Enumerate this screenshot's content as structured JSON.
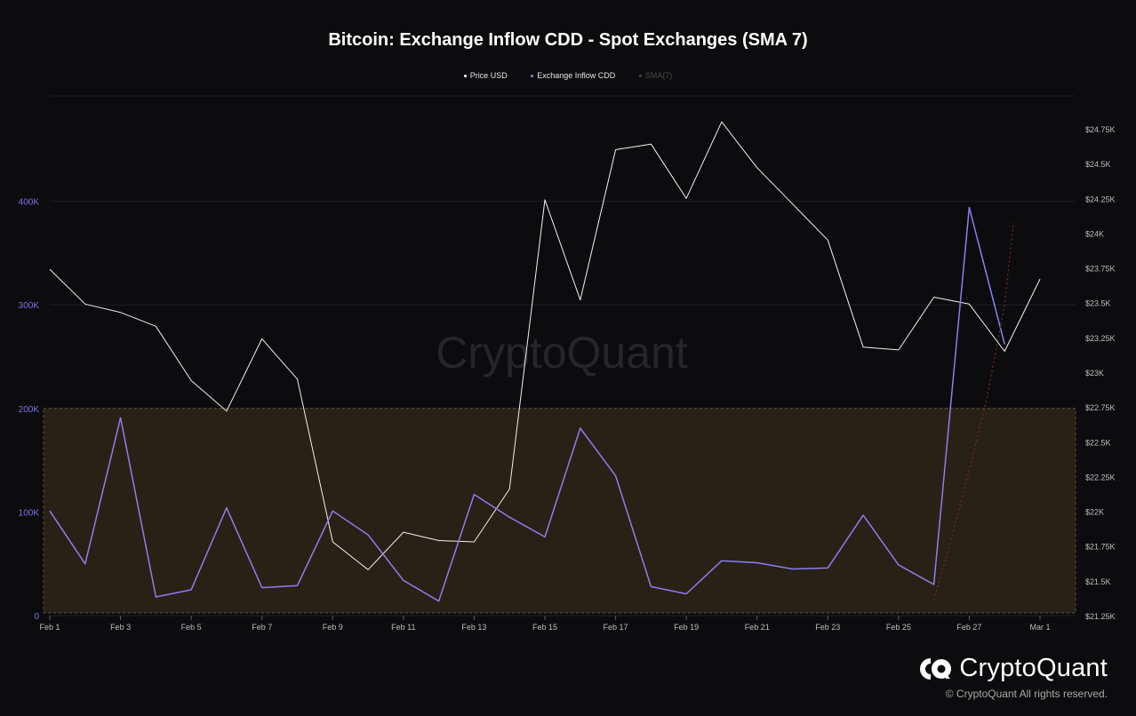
{
  "chart_data": {
    "type": "line",
    "title": "Bitcoin: Exchange Inflow CDD - Spot Exchanges (SMA 7)",
    "legend": [
      {
        "label": "Price USD",
        "color": "#ffffff",
        "active": true
      },
      {
        "label": "Exchange Inflow CDD",
        "color": "#8b7ff0",
        "active": true
      },
      {
        "label": "SMA(7)",
        "color": "#5a5a5a",
        "active": false
      }
    ],
    "watermark": "CryptoQuant",
    "left_axis": {
      "min": 0,
      "max": 500000,
      "ticks": [
        0,
        100000,
        200000,
        300000,
        400000
      ],
      "tick_labels": [
        "0",
        "100K",
        "200K",
        "300K",
        "400K"
      ],
      "color": "#7b6fe8"
    },
    "right_axis": {
      "min": 21250,
      "max": 24750,
      "ticks": [
        21250,
        21500,
        21750,
        22000,
        22250,
        22500,
        22750,
        23000,
        23250,
        23500,
        23750,
        24000,
        24250,
        24500,
        24750
      ],
      "tick_labels": [
        "$21.25K",
        "$21.5K",
        "$21.75K",
        "$22K",
        "$22.25K",
        "$22.5K",
        "$22.75K",
        "$23K",
        "$23.25K",
        "$23.5K",
        "$23.75K",
        "$24K",
        "$24.25K",
        "$24.5K",
        "$24.75K"
      ]
    },
    "x_day_max": 29,
    "x_ticks": [
      {
        "day": 1,
        "label": "Feb 1"
      },
      {
        "day": 3,
        "label": "Feb 3"
      },
      {
        "day": 5,
        "label": "Feb 5"
      },
      {
        "day": 7,
        "label": "Feb 7"
      },
      {
        "day": 9,
        "label": "Feb 9"
      },
      {
        "day": 11,
        "label": "Feb 11"
      },
      {
        "day": 13,
        "label": "Feb 13"
      },
      {
        "day": 15,
        "label": "Feb 15"
      },
      {
        "day": 17,
        "label": "Feb 17"
      },
      {
        "day": 19,
        "label": "Feb 19"
      },
      {
        "day": 21,
        "label": "Feb 21"
      },
      {
        "day": 23,
        "label": "Feb 23"
      },
      {
        "day": 25,
        "label": "Feb 25"
      },
      {
        "day": 27,
        "label": "Feb 27"
      },
      {
        "day": 29,
        "label": "Mar 1"
      }
    ],
    "threshold_band": {
      "from": 0,
      "to": 200000,
      "axis": "left"
    },
    "series": [
      {
        "name": "Price USD",
        "axis": "right",
        "color": "#f2f2f2",
        "x": [
          1,
          2,
          3,
          4,
          5,
          6,
          7,
          8,
          9,
          10,
          11,
          12,
          13,
          14,
          15,
          16,
          17,
          18,
          19,
          20,
          21,
          22,
          23,
          24,
          25,
          26,
          27,
          28,
          29
        ],
        "values": [
          23740,
          23490,
          23430,
          23330,
          22940,
          22720,
          23240,
          22950,
          21780,
          21580,
          21850,
          21790,
          21780,
          22160,
          24240,
          23520,
          24600,
          24640,
          24250,
          24800,
          24470,
          24210,
          23950,
          23180,
          23160,
          23540,
          23490,
          23150,
          23670
        ]
      },
      {
        "name": "Exchange Inflow CDD",
        "axis": "left",
        "color": "#8b7ff0",
        "x": [
          1,
          2,
          3,
          4,
          5,
          6,
          7,
          8,
          9,
          10,
          11,
          12,
          13,
          14,
          15,
          16,
          17,
          18,
          19,
          20,
          21,
          22,
          23,
          24,
          25,
          26,
          27,
          28
        ],
        "values": [
          101000,
          50000,
          191000,
          18000,
          25000,
          104000,
          27000,
          29000,
          101000,
          78000,
          34000,
          14000,
          117000,
          95000,
          76000,
          181000,
          135000,
          28000,
          21000,
          53000,
          51000,
          45000,
          46000,
          97000,
          49000,
          30000,
          394000,
          262000
        ]
      },
      {
        "name": "SMA(7)",
        "axis": "left",
        "color": "#7a2c1a",
        "dashed": true,
        "x": [
          26,
          26.5,
          27,
          27.5,
          28,
          28.25
        ],
        "values": [
          15000,
          75000,
          140000,
          210000,
          300000,
          380000
        ]
      }
    ]
  },
  "brand": {
    "name": "CryptoQuant",
    "copyright": "© CryptoQuant All rights reserved."
  }
}
